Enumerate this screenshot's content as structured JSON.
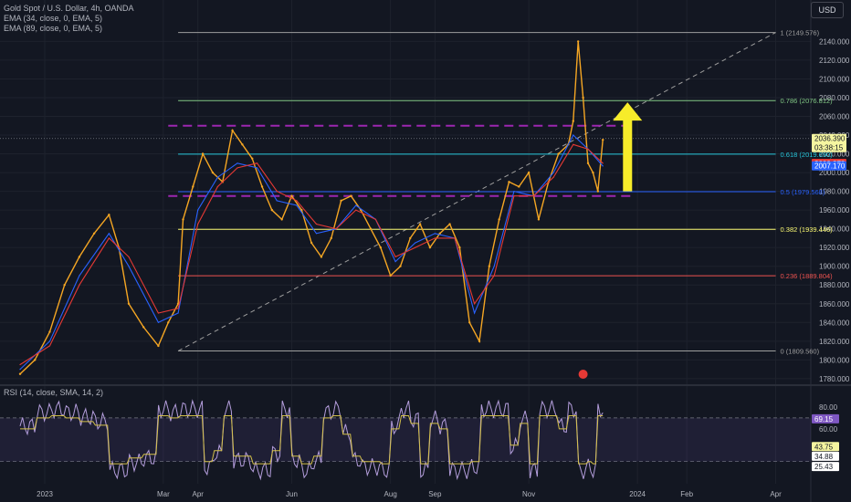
{
  "header": {
    "symbol_line": "Gold Spot / U.S. Dollar, 4h, OANDA",
    "ema1_line": "EMA (34, close, 0, EMA, 5)",
    "ema2_line": "EMA (89, close, 0, EMA, 5)",
    "currency": "USD"
  },
  "rsi_panel": {
    "label": "RSI (14, close, SMA, 14, 2)"
  },
  "colors": {
    "background": "#131722",
    "price": "#f5a623",
    "ema34": "#2962ff",
    "ema89": "#e53935",
    "rsi": "#b39ddb",
    "rsi_ma": "#d4c04a",
    "arrow": "#f7ec2a",
    "magenta": "#9c27b0"
  },
  "chart_data": [
    {
      "type": "line",
      "title": "Gold Spot / U.S. Dollar, 4h, OANDA",
      "y_ticks": [
        "2140.000",
        "2120.000",
        "2100.000",
        "2080.000",
        "2060.000",
        "2040.000",
        "2020.000",
        "2000.000",
        "1980.000",
        "1960.000",
        "1940.000",
        "1920.000",
        "1900.000",
        "1880.000",
        "1860.000",
        "1840.000",
        "1820.000",
        "1800.000",
        "1780.000"
      ],
      "ylim": [
        1775,
        2155
      ],
      "x_ticks": [
        "2023",
        "Mar",
        "Apr",
        "Jun",
        "Aug",
        "Sep",
        "Nov",
        "2024",
        "Feb",
        "Apr"
      ],
      "x_tick_pos": [
        0.5,
        2.9,
        3.6,
        5.5,
        7.5,
        8.4,
        10.3,
        12.5,
        13.5,
        15.3
      ],
      "xlim": [
        0,
        15.9
      ],
      "series": [
        {
          "name": "",
          "x": [
            0,
            0.3,
            0.6,
            0.9,
            1.2,
            1.5,
            1.8,
            2.0,
            2.2,
            2.5,
            2.8,
            3.0,
            3.2,
            3.3,
            3.5,
            3.7,
            3.9,
            4.1,
            4.3,
            4.5,
            4.7,
            4.9,
            5.1,
            5.3,
            5.5,
            5.7,
            5.9,
            6.1,
            6.3,
            6.5,
            6.7,
            6.9,
            7.1,
            7.3,
            7.5,
            7.7,
            7.9,
            8.1,
            8.3,
            8.5,
            8.7,
            8.9,
            9.1,
            9.3,
            9.5,
            9.7,
            9.9,
            10.1,
            10.3,
            10.5,
            10.7,
            10.9,
            11.1,
            11.2,
            11.3,
            11.4,
            11.5,
            11.6,
            11.7,
            11.8
          ],
          "y": [
            1785,
            1800,
            1830,
            1880,
            1910,
            1935,
            1955,
            1920,
            1860,
            1835,
            1815,
            1840,
            1860,
            1950,
            1985,
            2020,
            2000,
            1990,
            2045,
            2030,
            2015,
            1985,
            1960,
            1950,
            1975,
            1960,
            1925,
            1910,
            1930,
            1970,
            1975,
            1960,
            1940,
            1920,
            1890,
            1900,
            1930,
            1945,
            1920,
            1935,
            1945,
            1920,
            1840,
            1820,
            1900,
            1950,
            1990,
            1985,
            2000,
            1950,
            1990,
            2020,
            2030,
            2055,
            2140,
            2080,
            2010,
            2000,
            1980,
            2035
          ]
        },
        {
          "name": "EMA (34, close, 0, EMA, 5)",
          "x": [
            0,
            0.6,
            1.2,
            1.8,
            2.2,
            2.8,
            3.2,
            3.6,
            4.0,
            4.4,
            4.8,
            5.2,
            5.6,
            6.0,
            6.4,
            6.8,
            7.2,
            7.6,
            8.0,
            8.4,
            8.8,
            9.2,
            9.6,
            10.0,
            10.4,
            10.8,
            11.2,
            11.5,
            11.8
          ],
          "y": [
            1790,
            1820,
            1890,
            1935,
            1900,
            1840,
            1850,
            1960,
            1995,
            2010,
            2005,
            1970,
            1965,
            1935,
            1940,
            1965,
            1950,
            1905,
            1925,
            1935,
            1930,
            1850,
            1900,
            1980,
            1975,
            2000,
            2040,
            2025,
            2007
          ]
        },
        {
          "name": "EMA (89, close, 0, EMA, 5)",
          "x": [
            0,
            0.6,
            1.2,
            1.8,
            2.2,
            2.8,
            3.2,
            3.6,
            4.0,
            4.4,
            4.8,
            5.2,
            5.6,
            6.0,
            6.4,
            6.8,
            7.2,
            7.6,
            8.0,
            8.4,
            8.8,
            9.2,
            9.6,
            10.0,
            10.4,
            10.8,
            11.2,
            11.5,
            11.8
          ],
          "y": [
            1795,
            1815,
            1880,
            1930,
            1910,
            1850,
            1855,
            1945,
            1985,
            2005,
            2010,
            1980,
            1970,
            1945,
            1940,
            1960,
            1950,
            1910,
            1920,
            1930,
            1930,
            1860,
            1890,
            1975,
            1975,
            1995,
            2030,
            2025,
            2010
          ]
        }
      ],
      "fib_levels": [
        {
          "label": "1 (2149.576)",
          "value": 2149.576,
          "color": "#9e9e9e"
        },
        {
          "label": "0.786 (2076.812)",
          "value": 2076.812,
          "color": "#81c784"
        },
        {
          "label": "0.618 (2019.690)",
          "value": 2019.69,
          "color": "#26c6da"
        },
        {
          "label": "0.5 (1979.568)",
          "value": 1979.568,
          "color": "#2962ff"
        },
        {
          "label": "0.382 (1939.446)",
          "value": 1939.446,
          "color": "#f9f871"
        },
        {
          "label": "0.236 (1889.804)",
          "value": 1889.804,
          "color": "#ef5350"
        },
        {
          "label": "0 (1809.560)",
          "value": 1809.56,
          "color": "#9e9e9e"
        }
      ],
      "price_badges": [
        {
          "text": "2036.390",
          "sub": "03:38:15",
          "value": 2036.39,
          "bg": "#f5f5a0",
          "fg": "#131722"
        },
        {
          "text": "2009.878",
          "value": 2009.878,
          "bg": "#e53935",
          "fg": "#ffffff"
        },
        {
          "text": "2007.170",
          "value": 2007.17,
          "bg": "#2962ff",
          "fg": "#ffffff"
        }
      ],
      "resistance_levels": [
        2050,
        1975
      ],
      "current_price": 2036.39
    },
    {
      "type": "line",
      "title": "RSI (14, close, SMA, 14, 2)",
      "y_ticks": [
        "80.00",
        "60.00"
      ],
      "ylim": [
        18,
        85
      ],
      "bands": [
        70,
        30
      ],
      "badges": [
        {
          "text": "69.15",
          "value": 69.15,
          "bg": "#7e57c2",
          "fg": "#ffffff"
        },
        {
          "text": "43.75",
          "value": 43.75,
          "bg": "#f5f5a0",
          "fg": "#131722"
        },
        {
          "text": "34.88",
          "value": 34.88,
          "bg": "#ffffff",
          "fg": "#131722"
        },
        {
          "text": "25.43",
          "value": 25.43,
          "bg": "#ffffff",
          "fg": "#131722"
        }
      ]
    }
  ]
}
